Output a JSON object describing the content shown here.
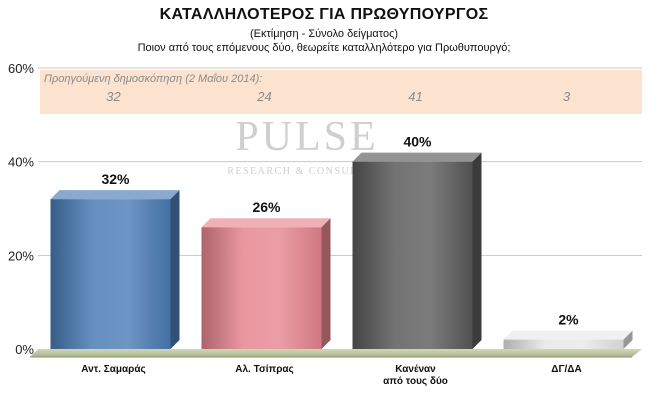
{
  "header": {
    "title": "ΚΑΤΑΛΛΗΛΟΤΕΡΟΣ ΓΙΑ ΠΡΩΘΥΠΟΥΡΓΟΣ",
    "subtitle": "(Εκτίμηση - Σύνολο δείγματος)",
    "question": "Ποιον από τους επόμενους δύο, θεωρείτε καταλληλότερο για Πρωθυπουργό;"
  },
  "watermark": {
    "brand": "PULSE",
    "tagline": "RESEARCH & CONSULTING"
  },
  "chart_data": {
    "type": "bar",
    "categories": [
      [
        "Αντ. Σαμαράς"
      ],
      [
        "Αλ. Τσίπρας"
      ],
      [
        "Κανέναν",
        "από τους δύο"
      ],
      [
        "ΔΓ/ΔΑ"
      ]
    ],
    "values": [
      32,
      26,
      40,
      2
    ],
    "data_labels": [
      "32%",
      "26%",
      "40%",
      "2%"
    ],
    "colors": [
      "#4a7bb5",
      "#e6858f",
      "#5a5a5a",
      "#e8e8e8"
    ],
    "ylim": [
      0,
      60
    ],
    "yticks": [
      0,
      20,
      40,
      60
    ],
    "ytick_labels": [
      "0%",
      "20%",
      "40%",
      "60%"
    ],
    "grid": true,
    "previous_poll": {
      "label": "Προηγούμενη δημοσκόπηση (2 Μαΐου 2014):",
      "values": [
        "32",
        "24",
        "41",
        "3"
      ],
      "band_color": "#fbe3cf"
    }
  }
}
